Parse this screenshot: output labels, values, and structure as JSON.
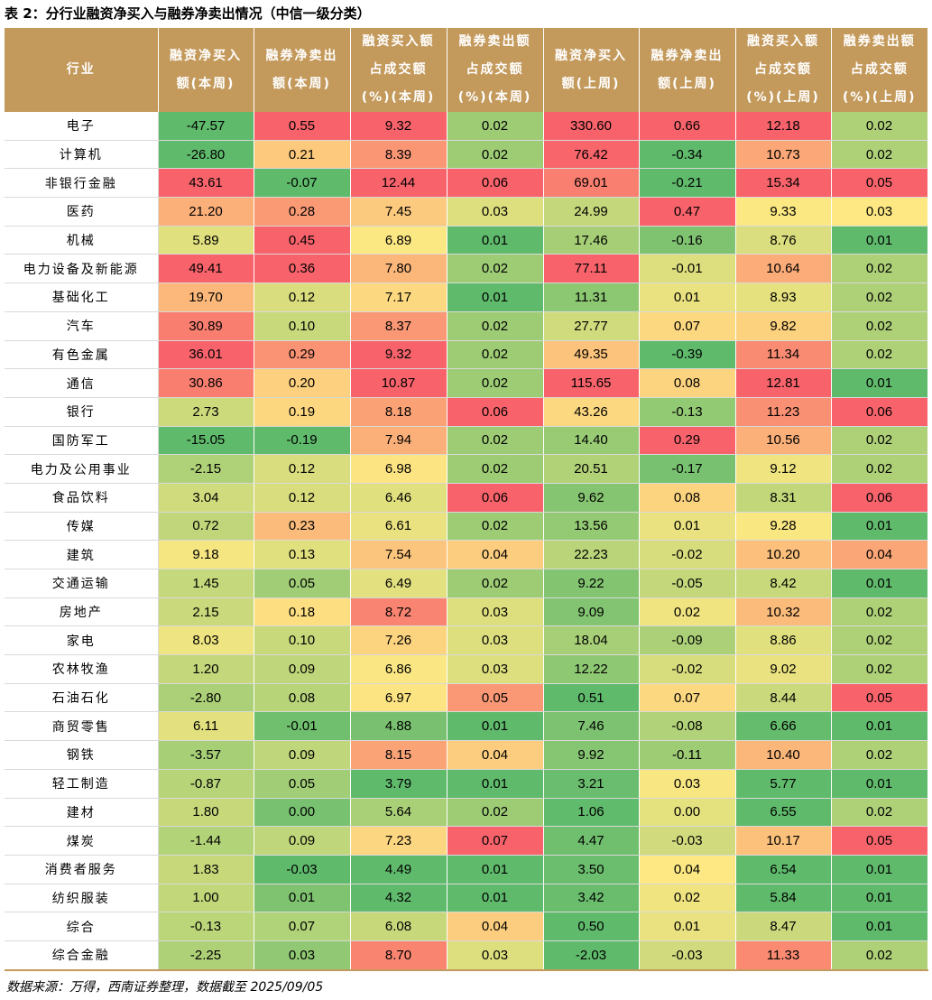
{
  "title": "表 2：分行业融资净买入与融券净卖出情况（中信一级分类）",
  "source": "数据来源：万得，西南证券整理，数据截至 2025/09/05",
  "headers": [
    [
      "行业"
    ],
    [
      "融资净买入",
      "额(本周)"
    ],
    [
      "融券净卖出",
      "额(本周)"
    ],
    [
      "融资买入额",
      "占成交额",
      "(%)(本周)"
    ],
    [
      "融券卖出额",
      "占成交额",
      "(%)(本周)"
    ],
    [
      "融资净买入",
      "额(上周)"
    ],
    [
      "融券净卖出",
      "额(上周)"
    ],
    [
      "融资买入额",
      "占成交额",
      "(%)(上周)"
    ],
    [
      "融券卖出额",
      "占成交额",
      "(%)(上周)"
    ]
  ],
  "rows": [
    [
      "电子",
      "-47.57",
      "0.55",
      "9.32",
      "0.02",
      "330.60",
      "0.66",
      "12.18",
      "0.02"
    ],
    [
      "计算机",
      "-26.80",
      "0.21",
      "8.39",
      "0.02",
      "76.42",
      "-0.34",
      "10.73",
      "0.02"
    ],
    [
      "非银行金融",
      "43.61",
      "-0.07",
      "12.44",
      "0.06",
      "69.01",
      "-0.21",
      "15.34",
      "0.05"
    ],
    [
      "医药",
      "21.20",
      "0.28",
      "7.45",
      "0.03",
      "24.99",
      "0.47",
      "9.33",
      "0.03"
    ],
    [
      "机械",
      "5.89",
      "0.45",
      "6.89",
      "0.01",
      "17.46",
      "-0.16",
      "8.76",
      "0.01"
    ],
    [
      "电力设备及新能源",
      "49.41",
      "0.36",
      "7.80",
      "0.02",
      "77.11",
      "-0.01",
      "10.64",
      "0.02"
    ],
    [
      "基础化工",
      "19.70",
      "0.12",
      "7.17",
      "0.01",
      "11.31",
      "0.01",
      "8.93",
      "0.02"
    ],
    [
      "汽车",
      "30.89",
      "0.10",
      "8.37",
      "0.02",
      "27.77",
      "0.07",
      "9.82",
      "0.02"
    ],
    [
      "有色金属",
      "36.01",
      "0.29",
      "9.32",
      "0.02",
      "49.35",
      "-0.39",
      "11.34",
      "0.02"
    ],
    [
      "通信",
      "30.86",
      "0.20",
      "10.87",
      "0.02",
      "115.65",
      "0.08",
      "12.81",
      "0.01"
    ],
    [
      "银行",
      "2.73",
      "0.19",
      "8.18",
      "0.06",
      "43.26",
      "-0.13",
      "11.23",
      "0.06"
    ],
    [
      "国防军工",
      "-15.05",
      "-0.19",
      "7.94",
      "0.02",
      "14.40",
      "0.29",
      "10.56",
      "0.02"
    ],
    [
      "电力及公用事业",
      "-2.15",
      "0.12",
      "6.98",
      "0.02",
      "20.51",
      "-0.17",
      "9.12",
      "0.02"
    ],
    [
      "食品饮料",
      "3.04",
      "0.12",
      "6.46",
      "0.06",
      "9.62",
      "0.08",
      "8.31",
      "0.06"
    ],
    [
      "传媒",
      "0.72",
      "0.23",
      "6.61",
      "0.02",
      "13.56",
      "0.01",
      "9.28",
      "0.01"
    ],
    [
      "建筑",
      "9.18",
      "0.13",
      "7.54",
      "0.04",
      "22.23",
      "-0.02",
      "10.20",
      "0.04"
    ],
    [
      "交通运输",
      "1.45",
      "0.05",
      "6.49",
      "0.02",
      "9.22",
      "-0.05",
      "8.42",
      "0.01"
    ],
    [
      "房地产",
      "2.15",
      "0.18",
      "8.72",
      "0.03",
      "9.09",
      "0.02",
      "10.32",
      "0.02"
    ],
    [
      "家电",
      "8.03",
      "0.10",
      "7.26",
      "0.03",
      "18.04",
      "-0.09",
      "8.86",
      "0.02"
    ],
    [
      "农林牧渔",
      "1.20",
      "0.09",
      "6.86",
      "0.03",
      "12.22",
      "-0.02",
      "9.02",
      "0.02"
    ],
    [
      "石油石化",
      "-2.80",
      "0.08",
      "6.97",
      "0.05",
      "0.51",
      "0.07",
      "8.44",
      "0.05"
    ],
    [
      "商贸零售",
      "6.11",
      "-0.01",
      "4.88",
      "0.01",
      "7.46",
      "-0.08",
      "6.66",
      "0.01"
    ],
    [
      "钢铁",
      "-3.57",
      "0.09",
      "8.15",
      "0.04",
      "9.92",
      "-0.11",
      "10.40",
      "0.02"
    ],
    [
      "轻工制造",
      "-0.87",
      "0.05",
      "3.79",
      "0.01",
      "3.21",
      "0.03",
      "5.77",
      "0.01"
    ],
    [
      "建材",
      "1.80",
      "0.00",
      "5.64",
      "0.02",
      "1.06",
      "0.00",
      "6.55",
      "0.02"
    ],
    [
      "煤炭",
      "-1.44",
      "0.09",
      "7.23",
      "0.07",
      "4.47",
      "-0.03",
      "10.17",
      "0.05"
    ],
    [
      "消费者服务",
      "1.83",
      "-0.03",
      "4.49",
      "0.01",
      "3.50",
      "0.04",
      "6.54",
      "0.01"
    ],
    [
      "纺织服装",
      "1.00",
      "0.01",
      "4.32",
      "0.01",
      "3.42",
      "0.02",
      "5.84",
      "0.01"
    ],
    [
      "综合",
      "-0.13",
      "0.07",
      "6.08",
      "0.04",
      "0.50",
      "0.01",
      "8.47",
      "0.01"
    ],
    [
      "综合金融",
      "-2.25",
      "0.03",
      "8.70",
      "0.03",
      "-2.03",
      "-0.03",
      "11.33",
      "0.02"
    ]
  ],
  "colors": {
    "header_bg": "#c49a5c",
    "scale_low": "#5fba6c",
    "scale_mid": "#fde883",
    "scale_high": "#f8636b"
  }
}
